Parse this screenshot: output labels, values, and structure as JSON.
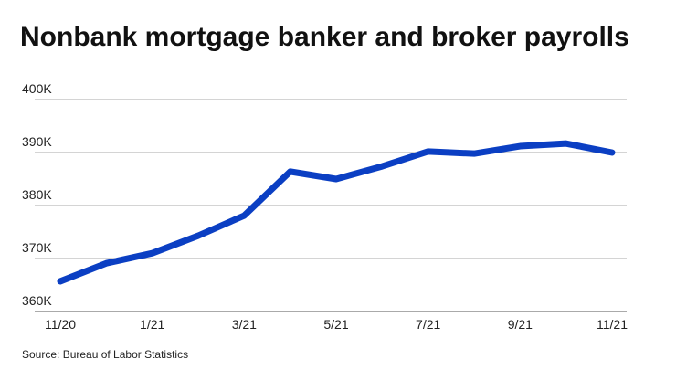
{
  "chart_data": {
    "type": "line",
    "title": "Nonbank mortgage banker and broker payrolls",
    "source": "Source: Bureau of Labor Statistics",
    "categories": [
      "11/20",
      null,
      "1/21",
      null,
      "3/21",
      null,
      "5/21",
      null,
      "7/21",
      null,
      "9/21",
      null,
      "11/21"
    ],
    "series": [
      {
        "name": "Payrolls",
        "color": "#0b3fc3",
        "values": [
          365700,
          369100,
          371000,
          374300,
          378100,
          386400,
          385000,
          387400,
          390200,
          389800,
          391200,
          391700,
          390000
        ]
      }
    ],
    "ylim": [
      360000,
      400000
    ],
    "yticks": [
      {
        "value": 360000,
        "label": "360K"
      },
      {
        "value": 370000,
        "label": "370K"
      },
      {
        "value": 380000,
        "label": "380K"
      },
      {
        "value": 390000,
        "label": "390K"
      },
      {
        "value": 400000,
        "label": "400K"
      }
    ],
    "grid": true
  }
}
